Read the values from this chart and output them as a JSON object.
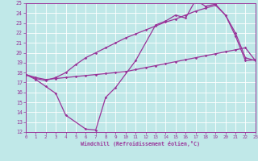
{
  "xlabel": "Windchill (Refroidissement éolien,°C)",
  "xlim": [
    0,
    23
  ],
  "ylim": [
    12,
    25
  ],
  "xticks": [
    0,
    1,
    2,
    3,
    4,
    5,
    6,
    7,
    8,
    9,
    10,
    11,
    12,
    13,
    14,
    15,
    16,
    17,
    18,
    19,
    20,
    21,
    22,
    23
  ],
  "yticks": [
    12,
    13,
    14,
    15,
    16,
    17,
    18,
    19,
    20,
    21,
    22,
    23,
    24,
    25
  ],
  "bg_color": "#c0e8e8",
  "line_color": "#993399",
  "grid_color": "#ffffff",
  "line1_x": [
    0,
    1,
    2,
    3,
    4,
    6,
    7,
    8,
    9,
    11,
    13,
    14,
    15,
    16,
    17,
    18,
    19,
    20,
    21,
    22,
    23
  ],
  "line1_y": [
    17.8,
    17.3,
    16.6,
    15.9,
    13.7,
    12.3,
    12.2,
    15.5,
    16.5,
    19.2,
    22.8,
    23.2,
    23.8,
    23.5,
    25.3,
    24.7,
    24.9,
    23.8,
    21.7,
    19.2,
    19.3
  ],
  "line2_x": [
    0,
    1,
    2,
    3,
    4,
    5,
    6,
    7,
    8,
    9,
    10,
    11,
    12,
    13,
    14,
    15,
    16,
    17,
    18,
    19,
    20,
    21,
    22,
    23
  ],
  "line2_y": [
    17.8,
    17.5,
    17.3,
    17.4,
    17.5,
    17.6,
    17.7,
    17.8,
    17.9,
    18.0,
    18.1,
    18.3,
    18.5,
    18.7,
    18.9,
    19.1,
    19.3,
    19.5,
    19.7,
    19.9,
    20.1,
    20.3,
    20.5,
    19.2
  ],
  "line3_x": [
    0,
    1,
    2,
    3,
    4,
    5,
    6,
    7,
    8,
    9,
    10,
    11,
    12,
    13,
    14,
    15,
    16,
    17,
    18,
    19,
    20,
    21,
    22,
    23
  ],
  "line3_y": [
    17.8,
    17.4,
    17.2,
    17.5,
    18.0,
    18.8,
    19.5,
    20.0,
    20.5,
    21.0,
    21.5,
    21.9,
    22.3,
    22.7,
    23.1,
    23.4,
    23.8,
    24.2,
    24.5,
    24.8,
    23.8,
    22.0,
    19.5,
    19.2
  ]
}
